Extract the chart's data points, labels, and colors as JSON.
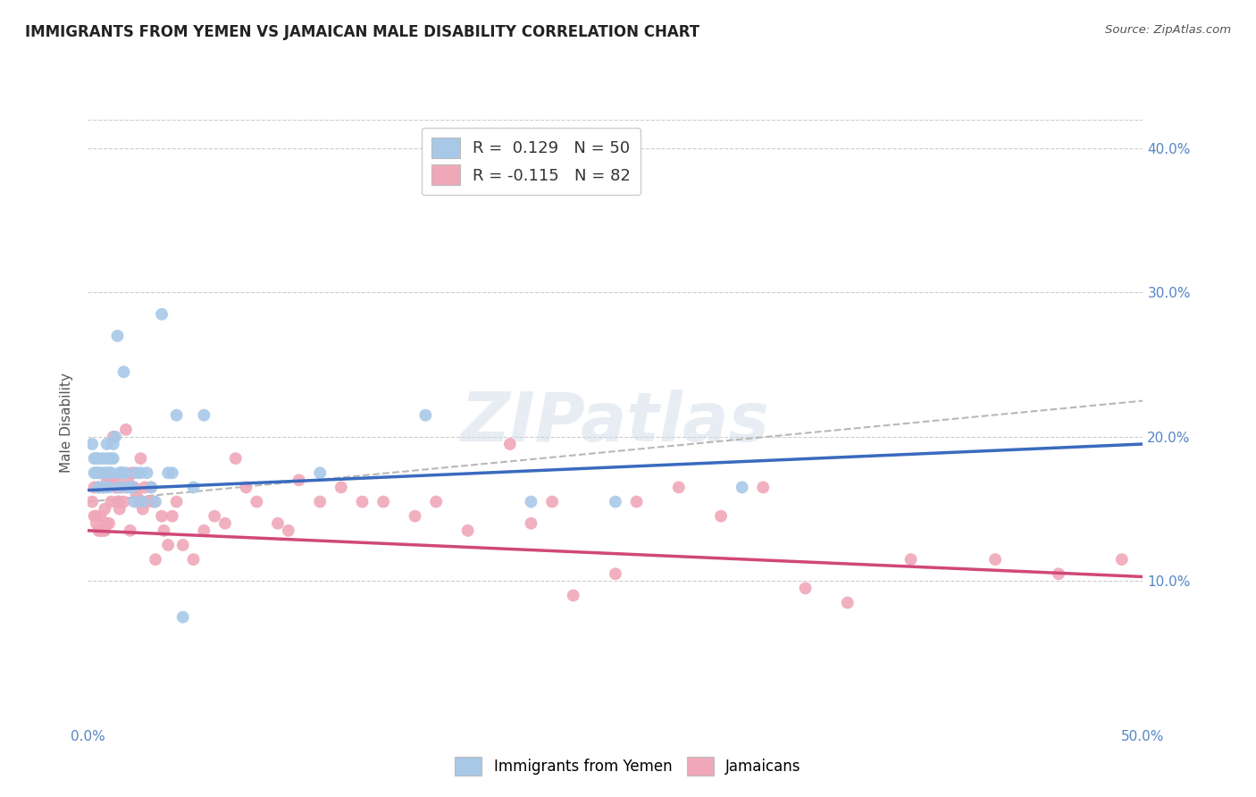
{
  "title": "IMMIGRANTS FROM YEMEN VS JAMAICAN MALE DISABILITY CORRELATION CHART",
  "source": "Source: ZipAtlas.com",
  "ylabel": "Male Disability",
  "xlim": [
    0.0,
    0.5
  ],
  "ylim": [
    0.0,
    0.42
  ],
  "xticks": [
    0.0,
    0.1,
    0.2,
    0.3,
    0.4,
    0.5
  ],
  "xticklabels": [
    "0.0%",
    "",
    "",
    "",
    "",
    "50.0%"
  ],
  "yticks_right": [
    0.1,
    0.2,
    0.3,
    0.4
  ],
  "yticklabels_right": [
    "10.0%",
    "20.0%",
    "30.0%",
    "40.0%"
  ],
  "legend1_R": "0.129",
  "legend1_N": "50",
  "legend2_R": "-0.115",
  "legend2_N": "82",
  "color_yemen": "#a8c8e8",
  "color_jamaican": "#f0a8b8",
  "color_yemen_line": "#3a6abf",
  "color_jamaican_line": "#d04878",
  "color_trendline_dashed": "#b8b8b8",
  "watermark": "ZIPatlas",
  "yemen_x": [
    0.002,
    0.003,
    0.003,
    0.004,
    0.004,
    0.005,
    0.005,
    0.005,
    0.006,
    0.007,
    0.007,
    0.008,
    0.008,
    0.009,
    0.009,
    0.01,
    0.01,
    0.011,
    0.011,
    0.012,
    0.012,
    0.013,
    0.014,
    0.015,
    0.015,
    0.016,
    0.017,
    0.018,
    0.019,
    0.02,
    0.021,
    0.022,
    0.023,
    0.025,
    0.026,
    0.028,
    0.03,
    0.032,
    0.035,
    0.038,
    0.04,
    0.042,
    0.045,
    0.05,
    0.055,
    0.11,
    0.16,
    0.21,
    0.25,
    0.31
  ],
  "yemen_y": [
    0.195,
    0.185,
    0.175,
    0.185,
    0.175,
    0.175,
    0.165,
    0.185,
    0.175,
    0.165,
    0.185,
    0.175,
    0.165,
    0.195,
    0.185,
    0.175,
    0.165,
    0.185,
    0.175,
    0.195,
    0.185,
    0.2,
    0.27,
    0.175,
    0.165,
    0.175,
    0.245,
    0.175,
    0.165,
    0.165,
    0.165,
    0.155,
    0.175,
    0.175,
    0.155,
    0.175,
    0.165,
    0.155,
    0.285,
    0.175,
    0.175,
    0.215,
    0.075,
    0.165,
    0.215,
    0.175,
    0.215,
    0.155,
    0.155,
    0.165
  ],
  "jamaican_x": [
    0.002,
    0.003,
    0.003,
    0.004,
    0.004,
    0.005,
    0.005,
    0.006,
    0.006,
    0.007,
    0.007,
    0.008,
    0.008,
    0.009,
    0.009,
    0.01,
    0.01,
    0.011,
    0.011,
    0.012,
    0.013,
    0.013,
    0.014,
    0.014,
    0.015,
    0.015,
    0.016,
    0.016,
    0.017,
    0.018,
    0.018,
    0.019,
    0.02,
    0.021,
    0.022,
    0.023,
    0.024,
    0.025,
    0.026,
    0.027,
    0.028,
    0.03,
    0.031,
    0.032,
    0.035,
    0.036,
    0.038,
    0.04,
    0.042,
    0.045,
    0.05,
    0.055,
    0.06,
    0.065,
    0.07,
    0.075,
    0.08,
    0.09,
    0.095,
    0.1,
    0.11,
    0.12,
    0.13,
    0.14,
    0.155,
    0.165,
    0.18,
    0.2,
    0.21,
    0.22,
    0.23,
    0.25,
    0.26,
    0.28,
    0.3,
    0.32,
    0.34,
    0.36,
    0.39,
    0.43,
    0.46,
    0.49
  ],
  "jamaican_y": [
    0.155,
    0.145,
    0.165,
    0.145,
    0.14,
    0.135,
    0.165,
    0.145,
    0.135,
    0.135,
    0.165,
    0.135,
    0.15,
    0.14,
    0.17,
    0.14,
    0.175,
    0.17,
    0.155,
    0.2,
    0.165,
    0.17,
    0.165,
    0.155,
    0.155,
    0.15,
    0.175,
    0.165,
    0.155,
    0.205,
    0.165,
    0.17,
    0.135,
    0.175,
    0.165,
    0.16,
    0.155,
    0.185,
    0.15,
    0.165,
    0.155,
    0.165,
    0.155,
    0.115,
    0.145,
    0.135,
    0.125,
    0.145,
    0.155,
    0.125,
    0.115,
    0.135,
    0.145,
    0.14,
    0.185,
    0.165,
    0.155,
    0.14,
    0.135,
    0.17,
    0.155,
    0.165,
    0.155,
    0.155,
    0.145,
    0.155,
    0.135,
    0.195,
    0.14,
    0.155,
    0.09,
    0.105,
    0.155,
    0.165,
    0.145,
    0.165,
    0.095,
    0.085,
    0.115,
    0.115,
    0.105,
    0.115
  ],
  "dashed_line_x": [
    0.0,
    0.5
  ],
  "dashed_line_y": [
    0.155,
    0.225
  ],
  "yemen_line_x": [
    0.0,
    0.5
  ],
  "yemen_line_y": [
    0.163,
    0.195
  ],
  "jamaican_line_x": [
    0.0,
    0.5
  ],
  "jamaican_line_y": [
    0.135,
    0.103
  ]
}
